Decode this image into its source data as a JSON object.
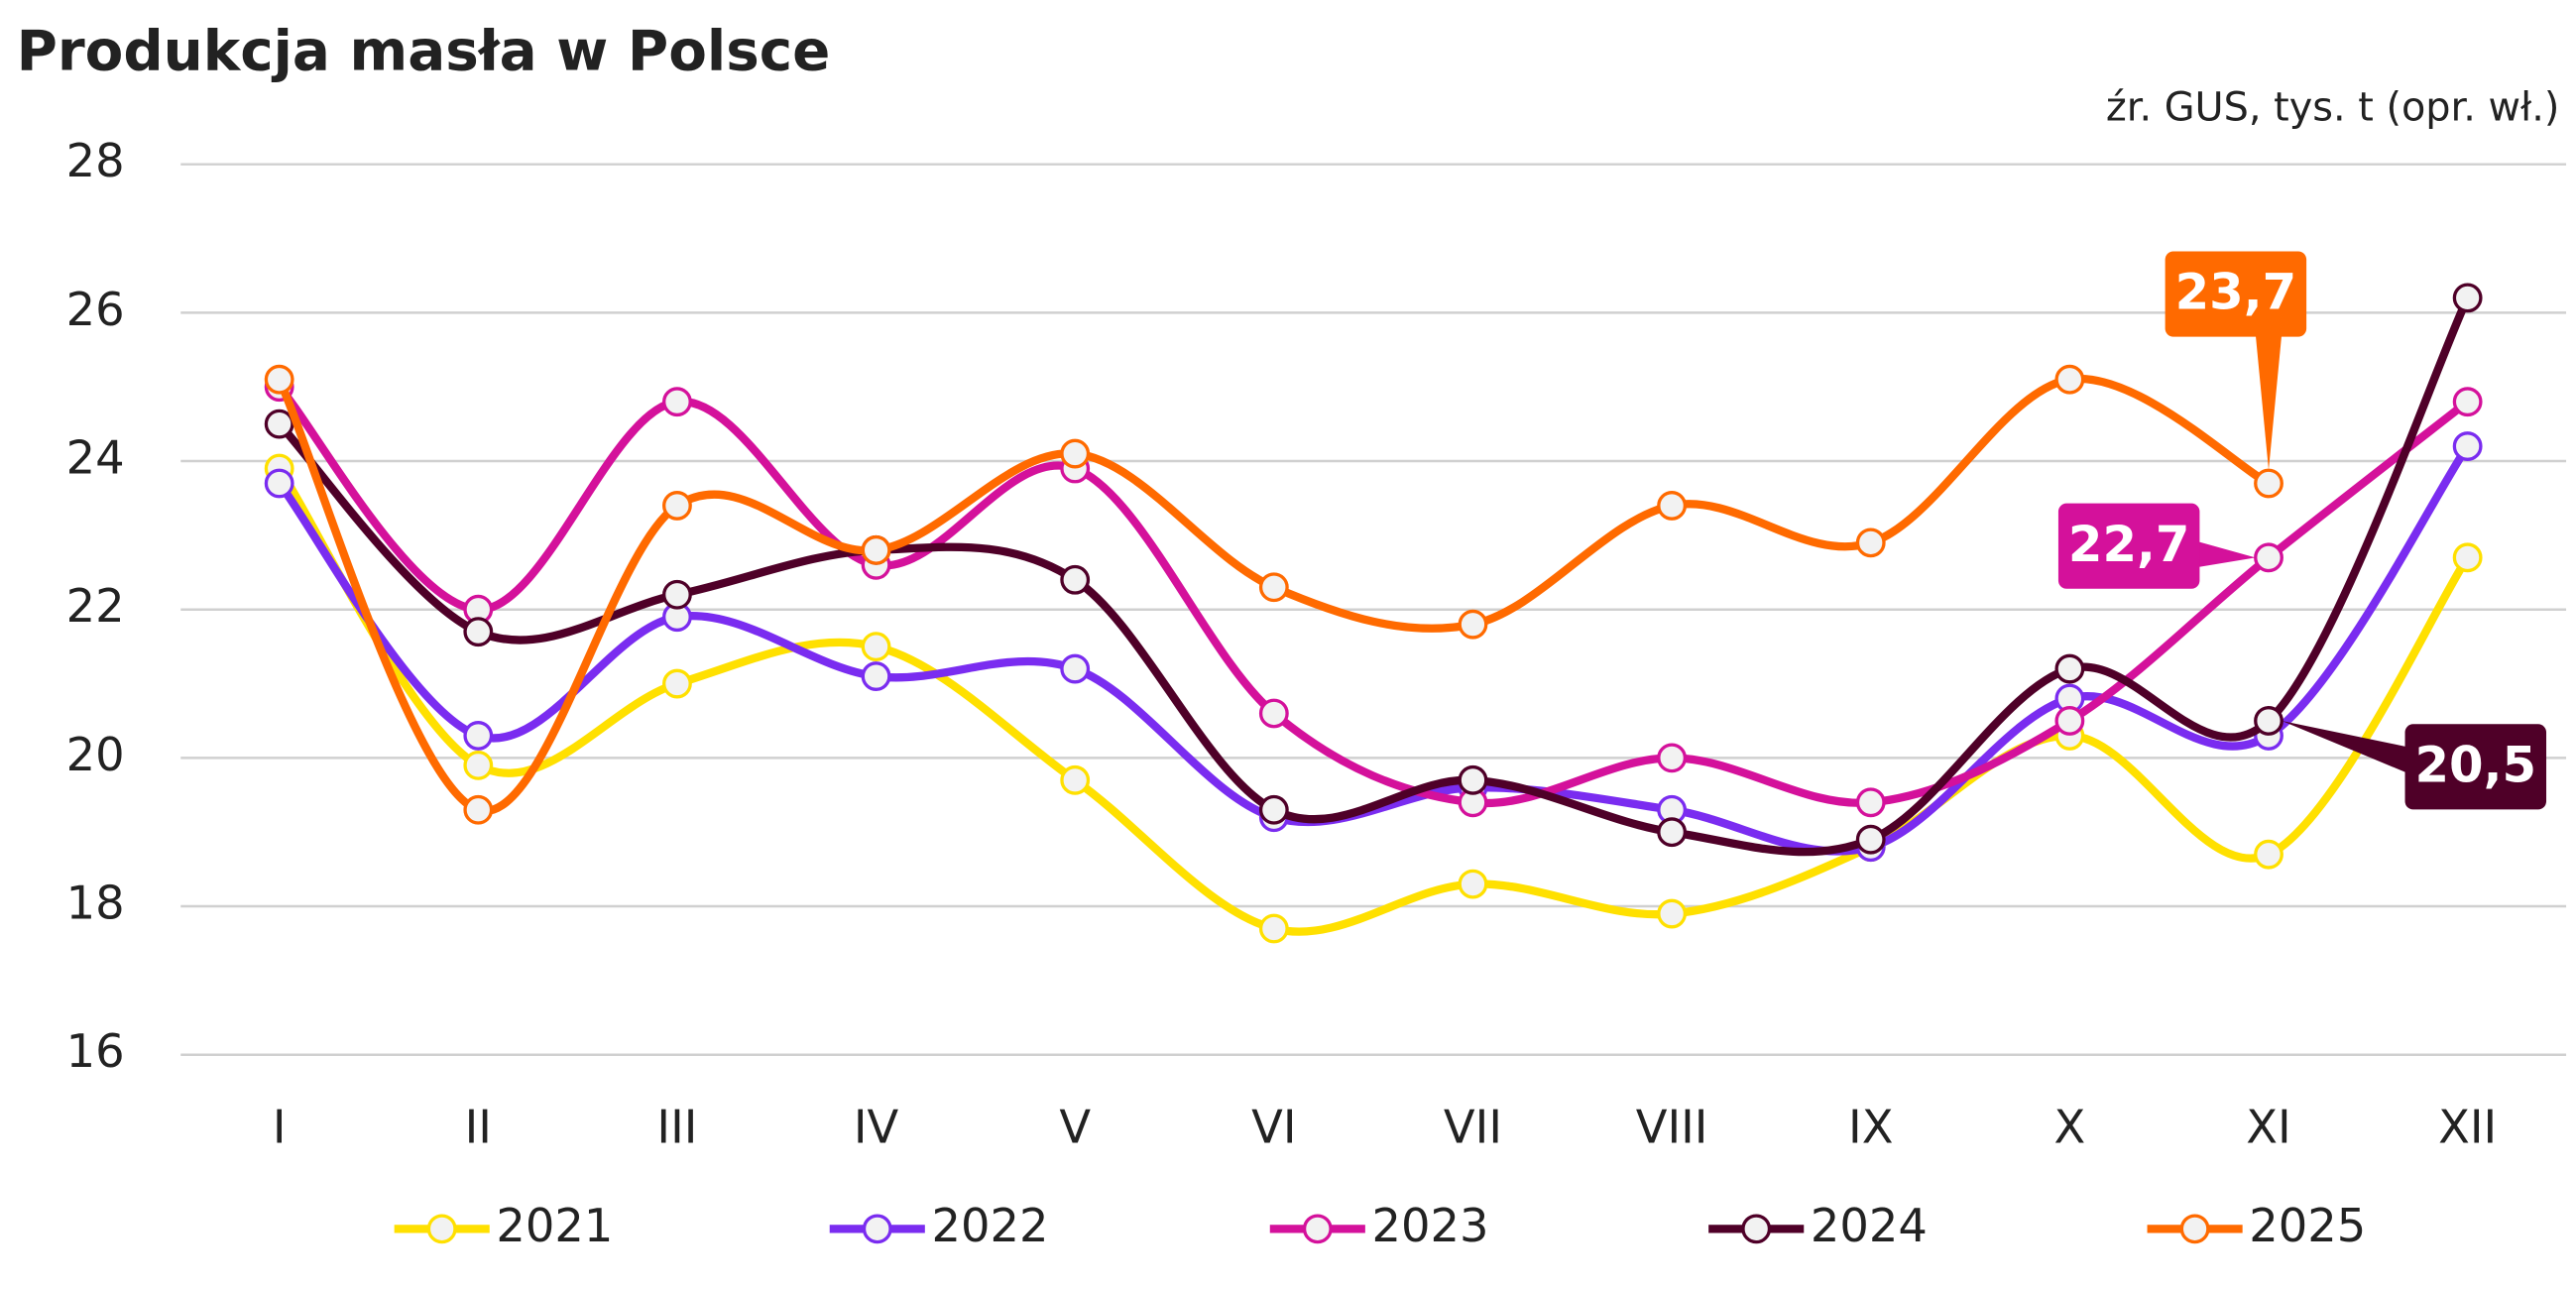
{
  "chart_data": {
    "type": "line",
    "title": "Produkcja masła w Polsce",
    "subtitle": "źr. GUS, tys. t (opr. wł.)",
    "categories": [
      "I",
      "II",
      "III",
      "IV",
      "V",
      "VI",
      "VII",
      "VIII",
      "IX",
      "X",
      "XI",
      "XII"
    ],
    "ylim": [
      16,
      28
    ],
    "yticks": [
      16,
      18,
      20,
      22,
      24,
      26,
      28
    ],
    "grid": true,
    "legend": "bottom",
    "series": [
      {
        "name": "2021",
        "color": "#ffe000",
        "values": [
          23.9,
          19.9,
          21.0,
          21.5,
          19.7,
          17.7,
          18.3,
          17.9,
          18.8,
          20.3,
          18.7,
          22.7
        ]
      },
      {
        "name": "2022",
        "color": "#7a2cf0",
        "values": [
          23.7,
          20.3,
          21.9,
          21.1,
          21.2,
          19.2,
          19.6,
          19.3,
          18.8,
          20.8,
          20.3,
          24.2
        ]
      },
      {
        "name": "2023",
        "color": "#d4119b",
        "values": [
          25.0,
          22.0,
          24.8,
          22.6,
          23.9,
          20.6,
          19.4,
          20.0,
          19.4,
          20.5,
          22.7,
          24.8
        ],
        "value_labels": [
          null,
          null,
          null,
          null,
          null,
          null,
          null,
          null,
          null,
          null,
          "22,7",
          null
        ]
      },
      {
        "name": "2024",
        "color": "#4f0028",
        "values": [
          24.5,
          21.7,
          22.2,
          22.8,
          22.4,
          19.3,
          19.7,
          19.0,
          18.9,
          21.2,
          20.5,
          26.2
        ],
        "value_labels": [
          null,
          null,
          null,
          null,
          null,
          null,
          null,
          null,
          null,
          null,
          "20,5",
          null
        ]
      },
      {
        "name": "2025",
        "color": "#ff6a00",
        "values": [
          25.1,
          19.3,
          23.4,
          22.8,
          24.1,
          22.3,
          21.8,
          23.4,
          22.9,
          25.1,
          23.7,
          null
        ],
        "value_labels": [
          null,
          null,
          null,
          null,
          null,
          null,
          null,
          null,
          null,
          null,
          "23,7",
          null
        ]
      }
    ]
  }
}
